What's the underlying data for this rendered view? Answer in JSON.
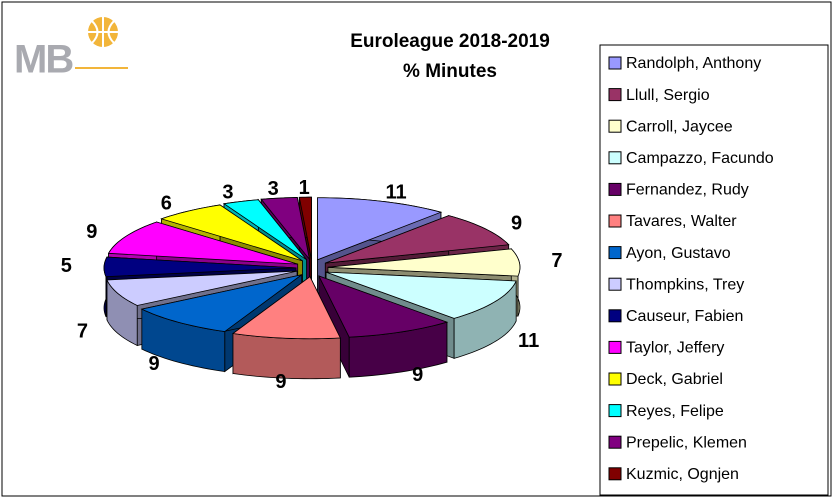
{
  "logo": "MB",
  "chart_data": {
    "type": "pie3d",
    "title": "Euroleague 2018-2019",
    "subtitle": "% Minutes",
    "categories": [
      "Randolph, Anthony",
      "Llull, Sergio",
      "Carroll, Jaycee",
      "Campazzo, Facundo",
      "Fernandez, Rudy",
      "Tavares, Walter",
      "Ayon, Gustavo",
      "Thompkins, Trey",
      "Causeur, Fabien",
      "Taylor, Jeffery",
      "Deck, Gabriel",
      "Reyes, Felipe",
      "Prepelic, Klemen",
      "Kuzmic, Ognjen"
    ],
    "values": [
      11,
      9,
      7,
      11,
      9,
      9,
      9,
      7,
      5,
      9,
      6,
      3,
      3,
      1
    ],
    "colors": [
      "#9999ff",
      "#993366",
      "#ffffcc",
      "#ccffff",
      "#660066",
      "#ff8080",
      "#0066cc",
      "#ccccff",
      "#000080",
      "#ff00ff",
      "#ffff00",
      "#00ffff",
      "#800080",
      "#800000"
    ],
    "legend": "right"
  }
}
